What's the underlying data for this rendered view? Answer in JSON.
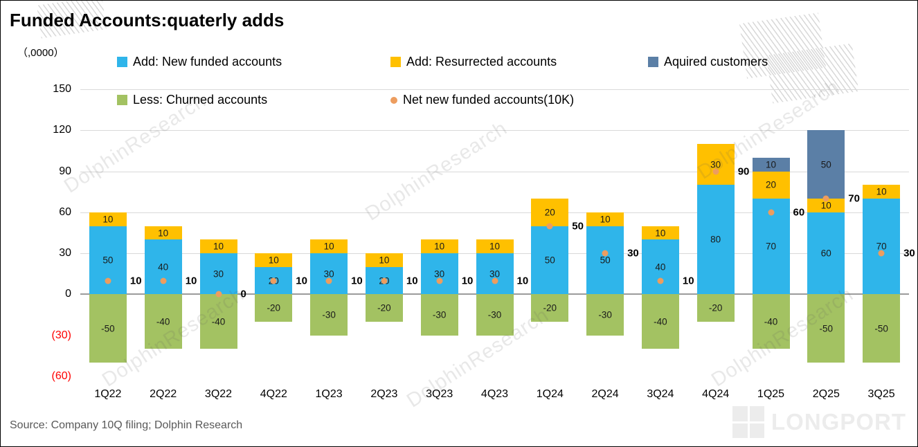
{
  "title": "Funded Accounts:quaterly adds",
  "unit_label": "（,0000）",
  "legend": [
    {
      "label": "Add: New funded accounts",
      "color": "#2FB5EA",
      "marker": "square"
    },
    {
      "label": "Add: Resurrected accounts",
      "color": "#FFC000",
      "marker": "square"
    },
    {
      "label": "Aquired customers",
      "color": "#5B7FA6",
      "marker": "square"
    },
    {
      "label": "Less: Churned accounts",
      "color": "#A3C262",
      "marker": "square"
    },
    {
      "label": "Net new funded accounts(10K)",
      "color": "#ED9D5F",
      "marker": "circle"
    }
  ],
  "chart_data": {
    "type": "bar",
    "stacked": true,
    "title": "Funded Accounts:quaterly adds",
    "ylabel": "（,0000）",
    "ylim": [
      -60,
      150
    ],
    "grid": "horizontal",
    "legend_position": "top",
    "categories": [
      "1Q22",
      "2Q22",
      "3Q22",
      "4Q22",
      "1Q23",
      "2Q23",
      "3Q23",
      "4Q23",
      "1Q24",
      "2Q24",
      "3Q24",
      "4Q24",
      "1Q25",
      "2Q25",
      "3Q25"
    ],
    "series": [
      {
        "name": "Add: New funded accounts",
        "color": "#2FB5EA",
        "values": [
          50,
          40,
          30,
          20,
          30,
          20,
          30,
          30,
          50,
          50,
          40,
          80,
          70,
          60,
          70
        ]
      },
      {
        "name": "Add: Resurrected accounts",
        "color": "#FFC000",
        "values": [
          10,
          10,
          10,
          10,
          10,
          10,
          10,
          10,
          20,
          10,
          10,
          30,
          20,
          10,
          10
        ]
      },
      {
        "name": "Aquired customers",
        "color": "#5B7FA6",
        "values": [
          0,
          0,
          0,
          0,
          0,
          0,
          0,
          0,
          0,
          0,
          0,
          0,
          10,
          50,
          0
        ]
      },
      {
        "name": "Less: Churned accounts",
        "color": "#A3C262",
        "values": [
          -50,
          -40,
          -40,
          -20,
          -30,
          -20,
          -30,
          -30,
          -20,
          -30,
          -40,
          -20,
          -40,
          -50,
          -50
        ]
      }
    ],
    "net_series": {
      "name": "Net new funded accounts(10K)",
      "color": "#ED9D5F",
      "values": [
        10,
        10,
        0,
        10,
        10,
        10,
        10,
        10,
        50,
        30,
        10,
        90,
        60,
        70,
        30
      ]
    },
    "yticks": [
      {
        "value": 150,
        "label": "150"
      },
      {
        "value": 120,
        "label": "120"
      },
      {
        "value": 90,
        "label": "90"
      },
      {
        "value": 60,
        "label": "60"
      },
      {
        "value": 30,
        "label": "30"
      },
      {
        "value": 0,
        "label": "0"
      },
      {
        "value": -30,
        "label": "(30)",
        "negative": true
      },
      {
        "value": -60,
        "label": "(60)",
        "negative": true
      }
    ]
  },
  "source": "Source: Company 10Q filing; Dolphin Research",
  "watermark": "DolphinResearch",
  "logo_text": "LONGPORT"
}
